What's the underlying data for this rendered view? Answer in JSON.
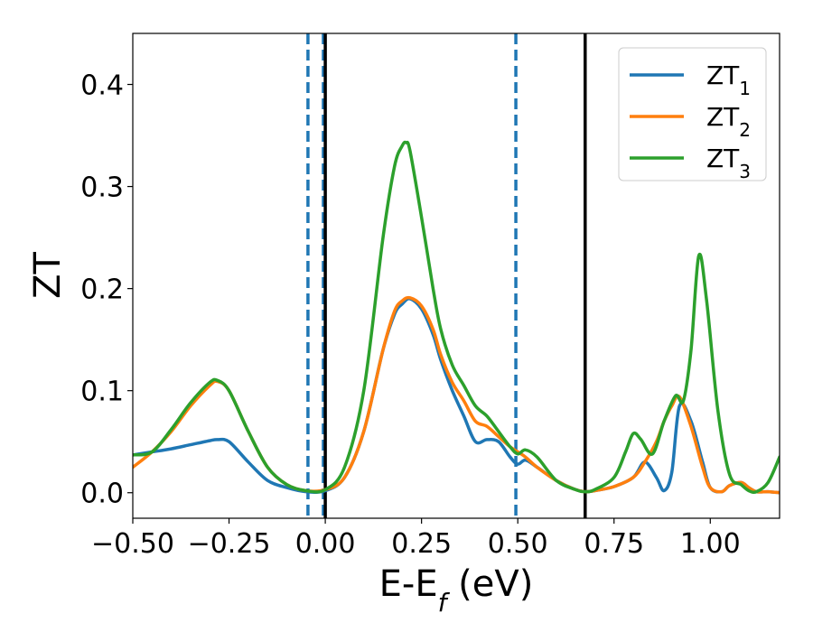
{
  "chart_data": {
    "type": "line",
    "title": "",
    "xlabel": "E-E",
    "xlabel_sub": "f",
    "xlabel_unit": " (eV)",
    "ylabel": "ZT",
    "xlim": [
      -0.5,
      1.18
    ],
    "ylim": [
      -0.025,
      0.45
    ],
    "xticks": [
      -0.5,
      -0.25,
      0.0,
      0.25,
      0.5,
      0.75,
      1.0
    ],
    "xtick_labels": [
      "−0.50",
      "−0.25",
      "0.00",
      "0.25",
      "0.50",
      "0.75",
      "1.00"
    ],
    "yticks": [
      0.0,
      0.1,
      0.2,
      0.3,
      0.4
    ],
    "ytick_labels": [
      "0.0",
      "0.1",
      "0.2",
      "0.3",
      "0.4"
    ],
    "grid": false,
    "legend_position": "top-right",
    "vlines_solid": [
      0.0,
      0.675
    ],
    "vlines_dashed": [
      -0.045,
      -0.005,
      0.495
    ],
    "series": [
      {
        "name": "ZT",
        "name_sub": "1",
        "color": "#1f77b4",
        "x": [
          -0.5,
          -0.45,
          -0.4,
          -0.35,
          -0.3,
          -0.28,
          -0.25,
          -0.2,
          -0.15,
          -0.1,
          -0.05,
          0.0,
          0.05,
          0.1,
          0.15,
          0.18,
          0.2,
          0.22,
          0.25,
          0.28,
          0.3,
          0.33,
          0.36,
          0.39,
          0.42,
          0.45,
          0.48,
          0.5,
          0.52,
          0.55,
          0.6,
          0.65,
          0.675,
          0.7,
          0.75,
          0.8,
          0.83,
          0.86,
          0.88,
          0.9,
          0.92,
          0.95,
          0.98,
          1.0,
          1.03,
          1.05,
          1.08,
          1.1,
          1.12,
          1.15,
          1.18
        ],
        "y": [
          0.037,
          0.04,
          0.043,
          0.047,
          0.051,
          0.052,
          0.05,
          0.03,
          0.012,
          0.005,
          0.001,
          0.002,
          0.015,
          0.06,
          0.14,
          0.175,
          0.185,
          0.19,
          0.18,
          0.155,
          0.13,
          0.1,
          0.075,
          0.05,
          0.052,
          0.05,
          0.035,
          0.028,
          0.032,
          0.025,
          0.012,
          0.003,
          0.001,
          0.002,
          0.006,
          0.015,
          0.03,
          0.015,
          0.002,
          0.02,
          0.085,
          0.07,
          0.03,
          0.005,
          0.001,
          0.007,
          0.01,
          0.005,
          0.001,
          0.001,
          0.0
        ]
      },
      {
        "name": "ZT",
        "name_sub": "2",
        "color": "#ff7f0e",
        "x": [
          -0.5,
          -0.45,
          -0.4,
          -0.35,
          -0.3,
          -0.28,
          -0.25,
          -0.2,
          -0.15,
          -0.1,
          -0.05,
          0.0,
          0.05,
          0.1,
          0.15,
          0.18,
          0.2,
          0.22,
          0.25,
          0.28,
          0.3,
          0.33,
          0.36,
          0.39,
          0.42,
          0.45,
          0.48,
          0.5,
          0.52,
          0.55,
          0.6,
          0.65,
          0.675,
          0.7,
          0.75,
          0.8,
          0.83,
          0.86,
          0.88,
          0.9,
          0.92,
          0.95,
          0.98,
          1.0,
          1.03,
          1.05,
          1.08,
          1.1,
          1.12,
          1.15,
          1.18
        ],
        "y": [
          0.025,
          0.04,
          0.06,
          0.085,
          0.105,
          0.109,
          0.1,
          0.06,
          0.025,
          0.008,
          0.002,
          0.003,
          0.015,
          0.06,
          0.14,
          0.178,
          0.188,
          0.191,
          0.183,
          0.16,
          0.135,
          0.108,
          0.09,
          0.07,
          0.065,
          0.055,
          0.045,
          0.04,
          0.035,
          0.025,
          0.012,
          0.003,
          0.001,
          0.002,
          0.006,
          0.015,
          0.03,
          0.05,
          0.07,
          0.085,
          0.094,
          0.065,
          0.025,
          0.005,
          0.001,
          0.007,
          0.01,
          0.005,
          0.001,
          0.001,
          0.0
        ]
      },
      {
        "name": "ZT",
        "name_sub": "3",
        "color": "#2ca02c",
        "x": [
          -0.5,
          -0.45,
          -0.4,
          -0.35,
          -0.3,
          -0.28,
          -0.25,
          -0.2,
          -0.15,
          -0.1,
          -0.05,
          0.0,
          0.05,
          0.1,
          0.15,
          0.18,
          0.2,
          0.21,
          0.22,
          0.25,
          0.28,
          0.3,
          0.33,
          0.36,
          0.39,
          0.42,
          0.45,
          0.48,
          0.5,
          0.52,
          0.55,
          0.6,
          0.65,
          0.675,
          0.7,
          0.75,
          0.78,
          0.8,
          0.82,
          0.85,
          0.88,
          0.91,
          0.93,
          0.95,
          0.97,
          0.99,
          1.02,
          1.05,
          1.08,
          1.1,
          1.12,
          1.15,
          1.18
        ],
        "y": [
          0.037,
          0.04,
          0.062,
          0.088,
          0.108,
          0.11,
          0.1,
          0.06,
          0.025,
          0.008,
          0.002,
          0.003,
          0.025,
          0.1,
          0.25,
          0.32,
          0.34,
          0.343,
          0.335,
          0.27,
          0.2,
          0.16,
          0.125,
          0.105,
          0.085,
          0.075,
          0.06,
          0.045,
          0.038,
          0.042,
          0.035,
          0.012,
          0.003,
          0.001,
          0.003,
          0.015,
          0.04,
          0.058,
          0.052,
          0.038,
          0.07,
          0.095,
          0.09,
          0.14,
          0.232,
          0.19,
          0.08,
          0.018,
          0.008,
          0.002,
          0.001,
          0.01,
          0.035
        ]
      }
    ]
  }
}
